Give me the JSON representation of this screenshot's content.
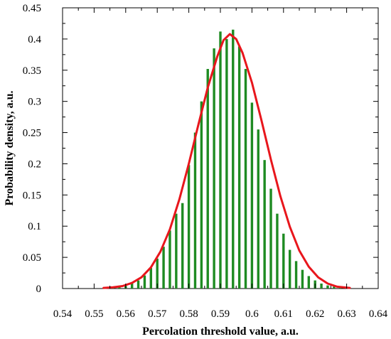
{
  "chart_data": {
    "type": "bar",
    "title": "",
    "xlabel": "Percolation threshold value, a.u.",
    "ylabel": "Probability density, a.u.",
    "xlim": [
      0.54,
      0.64
    ],
    "ylim": [
      0,
      0.45
    ],
    "x_ticks": [
      0.54,
      0.55,
      0.56,
      0.57,
      0.58,
      0.59,
      0.6,
      0.61,
      0.62,
      0.63,
      0.64
    ],
    "x_tick_labels": [
      "0.54",
      "0.55",
      "0.56",
      "0.57",
      "0.58",
      "0.59",
      "0.6",
      "0.61",
      "0.62",
      "0.63",
      "0.64"
    ],
    "y_ticks": [
      0,
      0.05,
      0.1,
      0.15,
      0.2,
      0.25,
      0.3,
      0.35,
      0.4,
      0.45
    ],
    "y_tick_labels": [
      "0",
      "0.05",
      "0.1",
      "0.15",
      "0.2",
      "0.25",
      "0.3",
      "0.35",
      "0.4",
      "0.45"
    ],
    "grid": false,
    "series": [
      {
        "kind": "histogram",
        "color": "#1e8b22",
        "x": [
          0.554,
          0.556,
          0.558,
          0.56,
          0.562,
          0.564,
          0.566,
          0.568,
          0.57,
          0.572,
          0.574,
          0.576,
          0.578,
          0.58,
          0.582,
          0.584,
          0.586,
          0.588,
          0.59,
          0.592,
          0.594,
          0.596,
          0.598,
          0.6,
          0.602,
          0.604,
          0.606,
          0.608,
          0.61,
          0.612,
          0.614,
          0.616,
          0.618,
          0.62,
          0.622,
          0.624,
          0.626,
          0.628,
          0.63
        ],
        "values": [
          0.001,
          0.001,
          0.002,
          0.004,
          0.008,
          0.013,
          0.021,
          0.033,
          0.048,
          0.067,
          0.093,
          0.12,
          0.137,
          0.198,
          0.25,
          0.3,
          0.352,
          0.385,
          0.412,
          0.4,
          0.415,
          0.388,
          0.352,
          0.298,
          0.255,
          0.206,
          0.16,
          0.12,
          0.088,
          0.062,
          0.044,
          0.03,
          0.02,
          0.013,
          0.008,
          0.005,
          0.003,
          0.002,
          0.001
        ]
      },
      {
        "kind": "line",
        "color": "#e8161c",
        "x": [
          0.553,
          0.556,
          0.559,
          0.562,
          0.565,
          0.568,
          0.571,
          0.574,
          0.577,
          0.58,
          0.583,
          0.586,
          0.589,
          0.591,
          0.593,
          0.595,
          0.597,
          0.6,
          0.603,
          0.606,
          0.609,
          0.612,
          0.615,
          0.618,
          0.621,
          0.624,
          0.627,
          0.631
        ],
        "y": [
          0.001,
          0.002,
          0.004,
          0.009,
          0.018,
          0.034,
          0.059,
          0.095,
          0.143,
          0.2,
          0.262,
          0.322,
          0.372,
          0.398,
          0.408,
          0.4,
          0.378,
          0.33,
          0.27,
          0.207,
          0.148,
          0.099,
          0.061,
          0.035,
          0.018,
          0.008,
          0.003,
          0.001
        ]
      }
    ]
  }
}
